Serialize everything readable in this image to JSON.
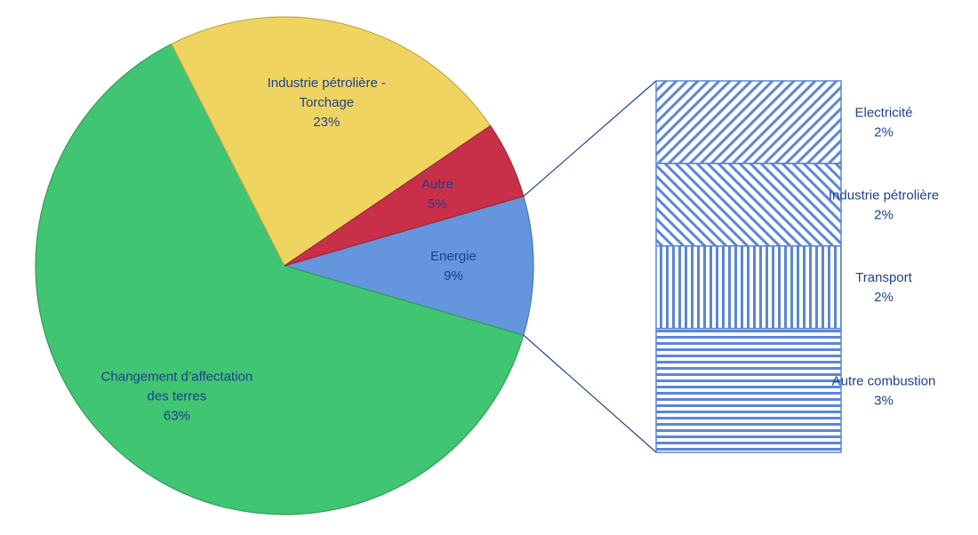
{
  "chart_data": {
    "type": "pie",
    "slices": [
      {
        "name": "Energie",
        "value": 9,
        "label_lines": [
          "Energie"
        ],
        "value_label": "9%",
        "color": "#6495dd"
      },
      {
        "name": "Changement d’affectation des terres",
        "value": 63,
        "label_lines": [
          "Changement d’affectation",
          "des terres"
        ],
        "value_label": "63%",
        "color": "#40c572"
      },
      {
        "name": "Industrie pétrolière - Torchage",
        "value": 23,
        "label_lines": [
          "Industrie pétrolière -",
          "Torchage"
        ],
        "value_label": "23%",
        "color": "#f0d460"
      },
      {
        "name": "Autre",
        "value": 5,
        "label_lines": [
          "Autre"
        ],
        "value_label": "5%",
        "color": "#c8304a"
      }
    ],
    "breakdown": {
      "of": "Energie",
      "segments": [
        {
          "name": "Electricité",
          "value": 2,
          "value_label": "2%",
          "pattern": "diag-down"
        },
        {
          "name": "Industrie pétrolière",
          "value": 2,
          "value_label": "2%",
          "pattern": "diag-up"
        },
        {
          "name": "Transport",
          "value": 2,
          "value_label": "2%",
          "pattern": "vertical"
        },
        {
          "name": "Autre combustion",
          "value": 3,
          "value_label": "3%",
          "pattern": "horizontal"
        }
      ],
      "color": "#5b86d6"
    }
  }
}
